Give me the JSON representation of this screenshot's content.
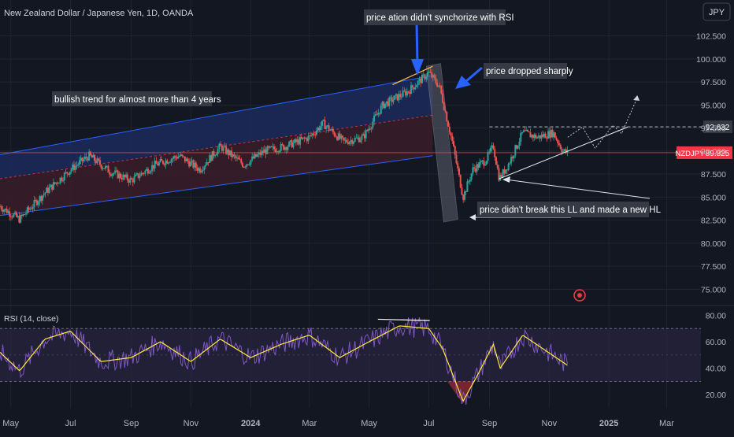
{
  "header": {
    "symbol_title": "New Zealand Dollar / Japanese Yen, 1D, OANDA",
    "currency_button": "JPY"
  },
  "colors": {
    "background": "#131722",
    "grid": "#1f2433",
    "axis_text": "#b2b5be",
    "candle_up": "#26a69a",
    "candle_down": "#ef5350",
    "channel_line": "#2962ff",
    "channel_upper_fill": "#1c2a5a",
    "channel_lower_fill": "#3a1c28",
    "mid_dashed": "#f23645",
    "rsi_line": "#7e57c2",
    "rsi_ma": "#ffeb3b",
    "rsi_band": "#2a2540",
    "annotation_bg": "#363a45",
    "annotation_text": "#ffffff",
    "arrow_blue": "#2962ff",
    "price_label_bg": "#f23645"
  },
  "chart_data": {
    "type": "candlestick",
    "title": "New Zealand Dollar / Japanese Yen, 1D, OANDA",
    "price_axis": {
      "ticks": [
        "102.500",
        "100.000",
        "97.500",
        "95.000",
        "92.500",
        "90.000",
        "87.500",
        "85.000",
        "82.500",
        "80.000",
        "77.500",
        "75.000"
      ],
      "range": [
        73.5,
        104.0
      ]
    },
    "time_axis": {
      "labels": [
        "May",
        "Jul",
        "Sep",
        "Nov",
        "2024",
        "Mar",
        "May",
        "Jul",
        "Sep",
        "Nov",
        "2025",
        "Mar"
      ]
    },
    "price_path": [
      {
        "date": "2023-04-20",
        "close": 84.0
      },
      {
        "date": "2023-05-10",
        "close": 82.6
      },
      {
        "date": "2023-06-05",
        "close": 85.5
      },
      {
        "date": "2023-07-01",
        "close": 88.0
      },
      {
        "date": "2023-07-20",
        "close": 89.5
      },
      {
        "date": "2023-08-10",
        "close": 87.8
      },
      {
        "date": "2023-09-01",
        "close": 86.8
      },
      {
        "date": "2023-09-25",
        "close": 88.5
      },
      {
        "date": "2023-10-20",
        "close": 89.5
      },
      {
        "date": "2023-11-10",
        "close": 88.0
      },
      {
        "date": "2023-12-01",
        "close": 90.5
      },
      {
        "date": "2023-12-25",
        "close": 88.5
      },
      {
        "date": "2024-01-15",
        "close": 90.0
      },
      {
        "date": "2024-02-05",
        "close": 90.5
      },
      {
        "date": "2024-03-01",
        "close": 91.5
      },
      {
        "date": "2024-03-15",
        "close": 93.0
      },
      {
        "date": "2024-04-05",
        "close": 91.0
      },
      {
        "date": "2024-04-25",
        "close": 91.5
      },
      {
        "date": "2024-05-15",
        "close": 95.0
      },
      {
        "date": "2024-06-10",
        "close": 96.5
      },
      {
        "date": "2024-07-01",
        "close": 98.5
      },
      {
        "date": "2024-07-12",
        "close": 97.0
      },
      {
        "date": "2024-07-25",
        "close": 91.0
      },
      {
        "date": "2024-08-05",
        "close": 85.0
      },
      {
        "date": "2024-08-15",
        "close": 88.0
      },
      {
        "date": "2024-08-28",
        "close": 89.0
      },
      {
        "date": "2024-09-05",
        "close": 90.5
      },
      {
        "date": "2024-09-11",
        "close": 87.0
      },
      {
        "date": "2024-09-20",
        "close": 88.5
      },
      {
        "date": "2024-10-05",
        "close": 92.0
      },
      {
        "date": "2024-10-20",
        "close": 91.5
      },
      {
        "date": "2024-11-05",
        "close": 92.0
      },
      {
        "date": "2024-11-15",
        "close": 90.0
      },
      {
        "date": "2024-11-20",
        "close": 89.8
      }
    ],
    "last_price": {
      "label": "NZDJPY",
      "value": "89.825",
      "numeric": 89.825
    },
    "level_line": {
      "value": "92.632",
      "numeric": 92.632
    },
    "channel": {
      "upper": [
        {
          "date": "2023-04-20",
          "price": 89.6
        },
        {
          "date": "2024-07-05",
          "price": 98.2
        }
      ],
      "mid": [
        {
          "date": "2023-04-20",
          "price": 87.0
        },
        {
          "date": "2024-07-05",
          "price": 93.9
        }
      ],
      "lower": [
        {
          "date": "2023-04-20",
          "price": 83.0
        },
        {
          "date": "2024-07-05",
          "price": 89.5
        }
      ]
    },
    "trendline_hl": [
      {
        "date": "2024-09-11",
        "price": 87.0
      },
      {
        "date": "2025-01-20",
        "price": 92.6
      }
    ],
    "rsi": {
      "label": "RSI (14, close)",
      "ticks": [
        "80.00",
        "60.00",
        "40.00",
        "20.00"
      ],
      "range": [
        10,
        85
      ],
      "band": [
        30,
        70
      ],
      "midline": 50,
      "path": [
        {
          "date": "2023-04-20",
          "value": 52
        },
        {
          "date": "2023-05-10",
          "value": 38
        },
        {
          "date": "2023-06-05",
          "value": 62
        },
        {
          "date": "2023-07-01",
          "value": 68
        },
        {
          "date": "2023-08-01",
          "value": 45
        },
        {
          "date": "2023-09-01",
          "value": 48
        },
        {
          "date": "2023-10-01",
          "value": 60
        },
        {
          "date": "2023-11-01",
          "value": 45
        },
        {
          "date": "2023-12-01",
          "value": 62
        },
        {
          "date": "2024-01-01",
          "value": 48
        },
        {
          "date": "2024-02-01",
          "value": 58
        },
        {
          "date": "2024-03-01",
          "value": 65
        },
        {
          "date": "2024-04-01",
          "value": 48
        },
        {
          "date": "2024-05-01",
          "value": 60
        },
        {
          "date": "2024-06-01",
          "value": 72
        },
        {
          "date": "2024-07-01",
          "value": 70
        },
        {
          "date": "2024-07-15",
          "value": 55
        },
        {
          "date": "2024-08-05",
          "value": 15
        },
        {
          "date": "2024-08-20",
          "value": 35
        },
        {
          "date": "2024-09-05",
          "value": 58
        },
        {
          "date": "2024-09-12",
          "value": 40
        },
        {
          "date": "2024-10-05",
          "value": 65
        },
        {
          "date": "2024-10-25",
          "value": 55
        },
        {
          "date": "2024-11-20",
          "value": 42
        }
      ]
    }
  },
  "annotations": {
    "bullish": "bullish trend for almost more than 4 years",
    "rsi_divergence": "price ation didn't synchorize with RSI",
    "dropped": "price dropped sharply",
    "hl": "price didn't break this LL and made a new HL"
  }
}
